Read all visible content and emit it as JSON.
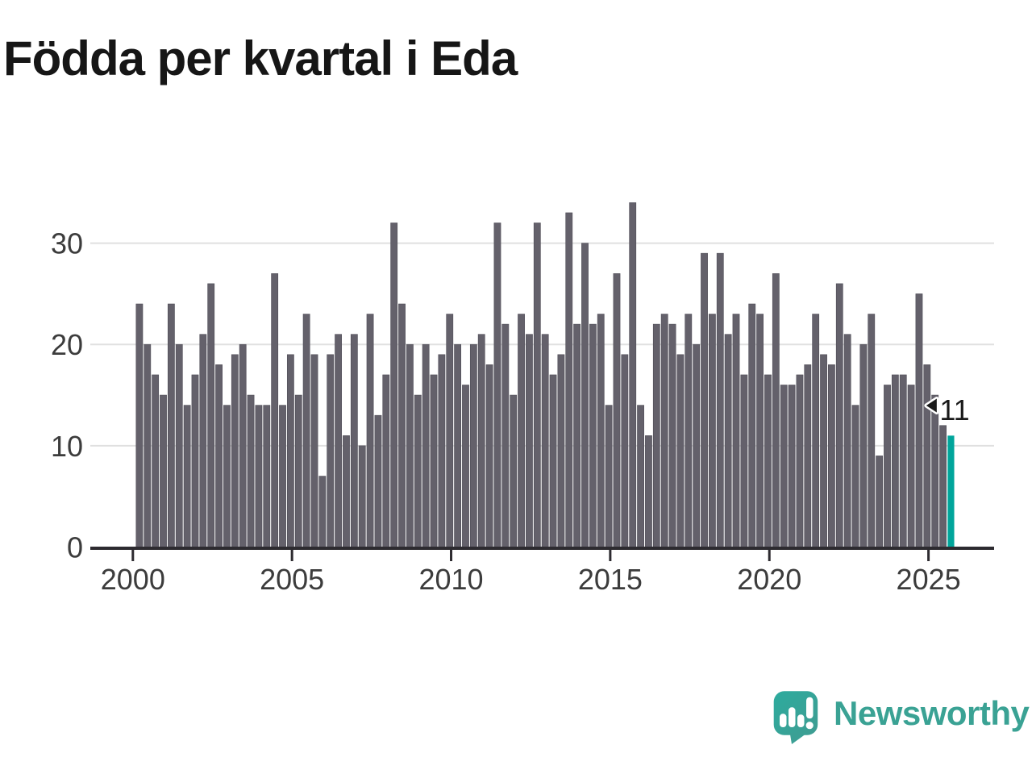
{
  "title": "Födda per kvartal i Eda",
  "annotation": {
    "text": "11"
  },
  "branding": {
    "wordmark": "Newsworthy"
  },
  "colors": {
    "bar": "#64616b",
    "bar_highlight": "#00a59b",
    "title_text": "#161616",
    "axis_text": "#3c3c3c",
    "gridline": "#e0e0e0",
    "axis_line": "#2d2b30",
    "annotation_text": "#191919",
    "brand_teal": "#3aa294"
  },
  "chart_data": {
    "type": "bar",
    "title": "Födda per kvartal i Eda",
    "x_unit": "quarter",
    "start_period": "2000 Q1",
    "end_period": "2025 Q3",
    "x_tick_labels": [
      "2000",
      "2005",
      "2010",
      "2015",
      "2020",
      "2025"
    ],
    "x_tick_quarter_offsets": [
      0,
      20,
      40,
      60,
      80,
      100
    ],
    "y_ticks": [
      0,
      10,
      20,
      30
    ],
    "ylim": [
      0,
      35
    ],
    "grid": "horizontal",
    "legend": "none",
    "ylabel": "",
    "xlabel": "",
    "highlight_index": 102,
    "highlight_label": "11",
    "values": [
      24,
      20,
      17,
      15,
      24,
      20,
      14,
      17,
      21,
      26,
      18,
      14,
      19,
      20,
      15,
      14,
      14,
      27,
      14,
      19,
      15,
      23,
      19,
      7,
      19,
      21,
      11,
      21,
      10,
      23,
      13,
      17,
      32,
      24,
      20,
      15,
      20,
      17,
      19,
      23,
      20,
      16,
      20,
      21,
      18,
      32,
      22,
      15,
      23,
      21,
      32,
      21,
      17,
      19,
      33,
      22,
      30,
      22,
      23,
      14,
      27,
      19,
      34,
      14,
      11,
      22,
      23,
      22,
      19,
      23,
      20,
      29,
      23,
      29,
      21,
      23,
      17,
      24,
      23,
      17,
      27,
      16,
      16,
      17,
      18,
      23,
      19,
      18,
      26,
      21,
      14,
      20,
      23,
      9,
      16,
      17,
      17,
      16,
      25,
      18,
      15,
      12,
      11
    ]
  }
}
